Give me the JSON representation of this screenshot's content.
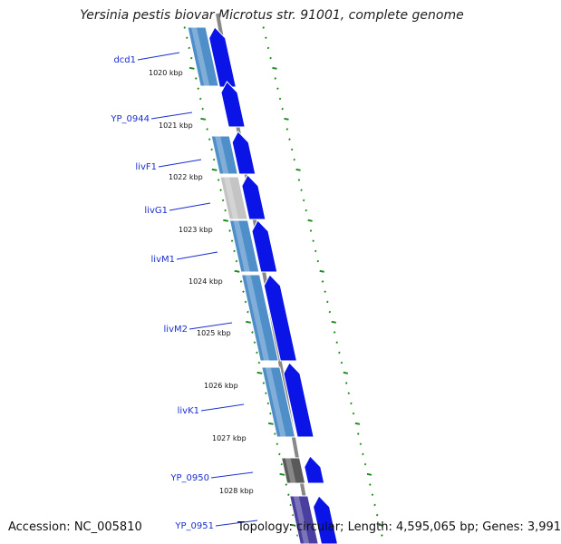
{
  "title": "Yersinia pestis biovar Microtus str. 91001, complete genome",
  "footer": {
    "accession": "Accession: NC_005810",
    "summary": "Topology: circular; Length: 4,595,065 bp; Genes: 3,991"
  },
  "colors": {
    "forward_gene": "#0a14e6",
    "cds_blue": "#4f8fc9",
    "cds_grey": "#c4c4c4",
    "cds_dark": "#5a5a5a",
    "cds_purple": "#4a3fa0",
    "tick_green": "#1a8a1a",
    "label_blue": "#1a2fd0",
    "backbone": "#888888"
  },
  "gene_labels": [
    "dcd1",
    "YP_0944",
    "livF1",
    "livG1",
    "livM1",
    "livM2",
    "livK1",
    "YP_0950",
    "YP_0951"
  ],
  "kbp_ticks": [
    "1020 kbp",
    "1021 kbp",
    "1022 kbp",
    "1023 kbp",
    "1024 kbp",
    "1025 kbp",
    "1026 kbp",
    "1027 kbp",
    "1028 kbp"
  ]
}
